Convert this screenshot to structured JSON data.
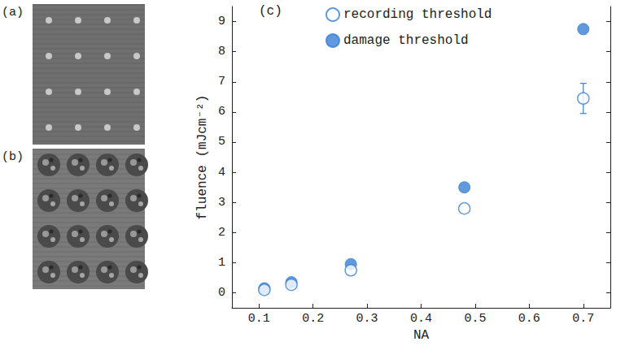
{
  "panels": [
    {
      "label": "(a)"
    },
    {
      "label": "(b)"
    }
  ],
  "chart_data": {
    "type": "scatter",
    "panel_label": "(c)",
    "x_label": "NA",
    "y_label": "fluence (mJcm⁻²)",
    "x": [
      0.11,
      0.16,
      0.27,
      0.48,
      0.7
    ],
    "series": [
      {
        "name": "recording threshold",
        "color": "#3a7fd5",
        "marker": "open",
        "values": [
          0.1,
          0.27,
          0.75,
          2.8,
          6.45
        ],
        "errors": [
          null,
          null,
          null,
          null,
          0.5
        ]
      },
      {
        "name": "damage threshold",
        "color": "#3a7fd5",
        "marker": "filled",
        "values": [
          0.15,
          0.35,
          0.95,
          3.5,
          8.75
        ]
      }
    ],
    "xlim": [
      0.05,
      0.75
    ],
    "xticks": [
      0.1,
      0.2,
      0.3,
      0.4,
      0.5,
      0.6,
      0.7
    ],
    "ylim": [
      -0.5,
      9.5
    ],
    "yticks": [
      0,
      1,
      2,
      3,
      4,
      5,
      6,
      7,
      8,
      9
    ],
    "legend": "upper left",
    "grid": false
  }
}
